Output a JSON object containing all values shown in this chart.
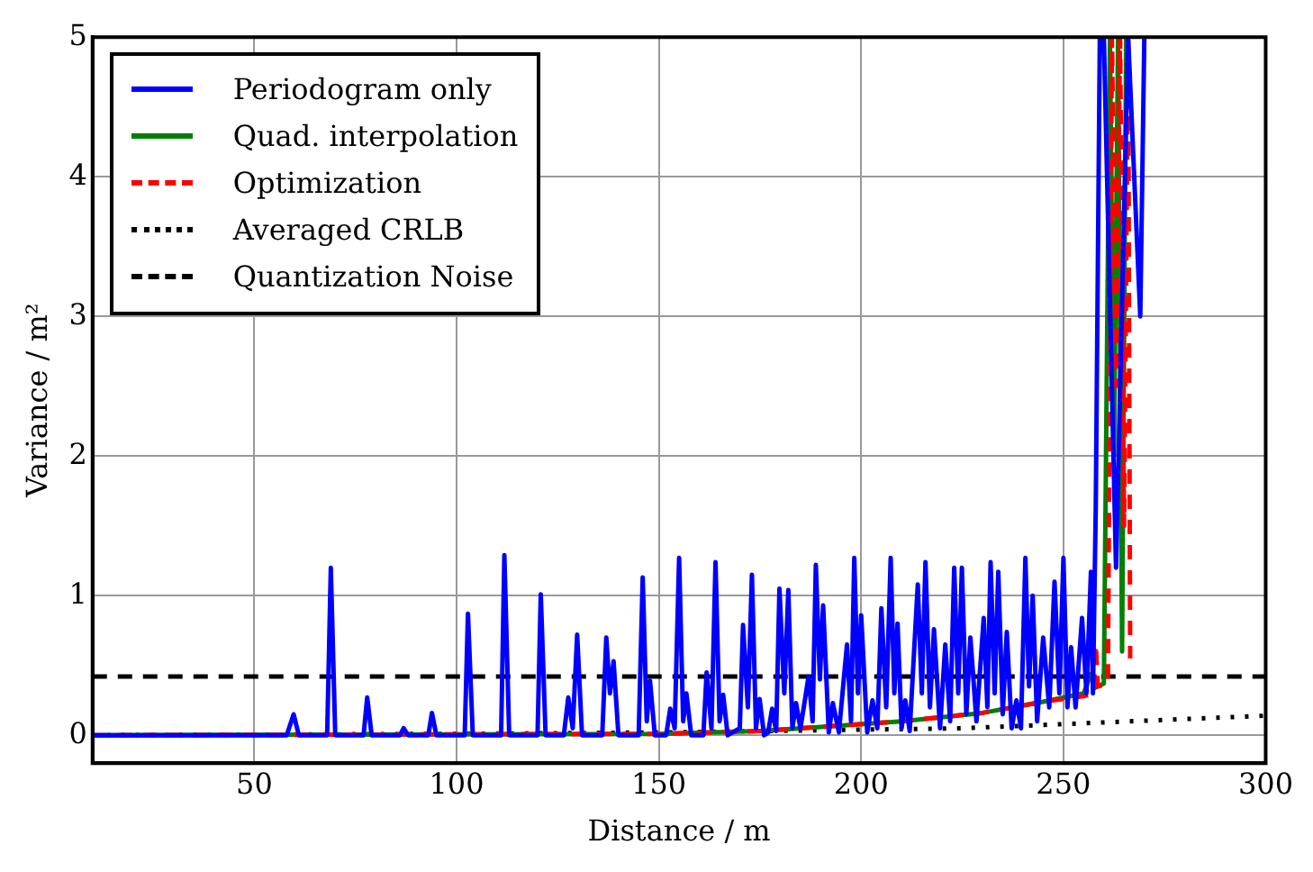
{
  "chart_data": {
    "type": "line",
    "xlabel": "Distance / m",
    "ylabel": "Variance / m²",
    "xlim": [
      10,
      300
    ],
    "xticks": [
      50,
      100,
      150,
      200,
      250,
      300
    ],
    "ylim": [
      -0.2,
      5
    ],
    "yticks": [
      0,
      1,
      2,
      3,
      4,
      5
    ],
    "grid": true,
    "legend": "top left",
    "marker": "none",
    "series": [
      {
        "name": "Periodogram only",
        "color": "#0000ff",
        "line_style": "solid",
        "x": [
          10,
          58,
          59.7,
          61,
          68,
          68.9,
          70,
          77,
          77.9,
          79,
          86,
          86.9,
          88,
          93,
          93.9,
          95,
          102,
          102.8,
          104,
          111,
          111.8,
          113,
          120,
          120.8,
          122,
          126.5,
          127.6,
          128.7,
          129.8,
          131,
          136,
          137,
          137.9,
          138.8,
          140,
          145,
          146,
          147,
          147.8,
          149,
          151.8,
          152.8,
          153.9,
          155,
          156,
          156.8,
          158,
          161,
          161.8,
          163,
          164,
          165,
          165.9,
          167,
          170,
          170.8,
          172,
          173,
          174,
          174.9,
          176,
          177,
          178,
          179,
          179.8,
          181,
          182,
          183,
          183.9,
          185,
          187,
          188,
          188.8,
          189.8,
          190.6,
          192,
          193,
          194.5,
          196.5,
          197.5,
          198.3,
          199.2,
          200,
          201.5,
          202.8,
          204,
          205,
          206.2,
          207.3,
          208.2,
          209,
          210,
          210.9,
          212,
          214,
          215,
          215.9,
          217,
          218,
          219.5,
          220.8,
          222,
          223,
          224,
          224.9,
          226,
          227,
          228.5,
          230.3,
          231.2,
          232,
          233,
          233.9,
          235,
          236,
          237.2,
          238.4,
          239.5,
          240.6,
          241.5,
          242.4,
          243.5,
          245,
          246.5,
          247.8,
          249,
          250,
          251,
          251.9,
          253,
          254.6,
          255.7,
          256.8,
          257.3,
          258,
          259,
          260,
          263,
          266,
          269,
          270
        ],
        "values": [
          0,
          0,
          0.15,
          0,
          0,
          1.2,
          0,
          0,
          0.27,
          0,
          0,
          0.05,
          0,
          0,
          0.16,
          0,
          0,
          0.87,
          0,
          0,
          1.29,
          0,
          0,
          1.01,
          0,
          0,
          0.27,
          0.05,
          0.72,
          0,
          0,
          0.7,
          0.3,
          0.53,
          0,
          0,
          1.13,
          0.1,
          0.39,
          0,
          0,
          0.19,
          0.05,
          1.27,
          0.1,
          0.3,
          0,
          0,
          0.45,
          0.05,
          1.24,
          0.1,
          0.29,
          0,
          0.05,
          0.79,
          0.2,
          1.15,
          0.05,
          0.26,
          0,
          0.02,
          0.19,
          0.03,
          1.05,
          0.3,
          1.04,
          0.05,
          0.23,
          0.05,
          0.42,
          0.1,
          1.22,
          0.4,
          0.93,
          0.02,
          0.23,
          0.02,
          0.65,
          0.1,
          1.27,
          0.3,
          0.86,
          0.02,
          0.25,
          0.05,
          0.91,
          0.2,
          1.27,
          0.3,
          0.8,
          0.05,
          0.25,
          0.03,
          1.08,
          0.3,
          1.24,
          0.2,
          0.76,
          0.05,
          0.65,
          0.1,
          1.2,
          0.3,
          1.2,
          0.15,
          0.7,
          0.1,
          0.84,
          0.2,
          1.24,
          0.3,
          1.17,
          0.15,
          0.74,
          0.05,
          0.25,
          0.05,
          1.27,
          0.35,
          1.0,
          0.1,
          0.7,
          0.2,
          1.1,
          0.3,
          1.27,
          0.2,
          0.63,
          0.2,
          0.84,
          0.3,
          1.17,
          0.3,
          1.64,
          5,
          5,
          1.2,
          5,
          3,
          5
        ]
      },
      {
        "name": "Quad. interpolation",
        "color": "#008000",
        "line_style": "solid",
        "x": [
          10,
          150,
          175,
          190,
          210,
          230,
          245,
          255,
          256.8,
          257.8,
          260,
          261.5,
          262.5,
          263.5,
          264.5,
          265.5
        ],
        "values": [
          0,
          0.01,
          0.03,
          0.06,
          0.1,
          0.16,
          0.24,
          0.3,
          0.44,
          0.34,
          0.37,
          5,
          2,
          5,
          0.6,
          5
        ]
      },
      {
        "name": "Optimization",
        "color": "#ff0000",
        "line_style": "dashed",
        "x": [
          10,
          150,
          175,
          190,
          210,
          230,
          245,
          255,
          257.5,
          258,
          258.5,
          260,
          261,
          262,
          263,
          264,
          265,
          266,
          266.5
        ],
        "values": [
          0,
          0.01,
          0.03,
          0.06,
          0.1,
          0.16,
          0.24,
          0.28,
          0.3,
          0.65,
          0.35,
          0.36,
          0.38,
          5,
          2.5,
          5,
          1.5,
          5,
          0.55
        ]
      },
      {
        "name": "Averaged CRLB",
        "color": "#000000",
        "line_style": "dotted",
        "x": [
          10,
          100,
          150,
          200,
          225,
          250,
          275,
          300
        ],
        "values": [
          0,
          0.01,
          0.02,
          0.04,
          0.05,
          0.08,
          0.11,
          0.14
        ]
      },
      {
        "name": "Quantization Noise",
        "color": "#000000",
        "line_style": "dashed",
        "x": [
          10,
          300
        ],
        "values": [
          0.42,
          0.42
        ]
      }
    ]
  }
}
